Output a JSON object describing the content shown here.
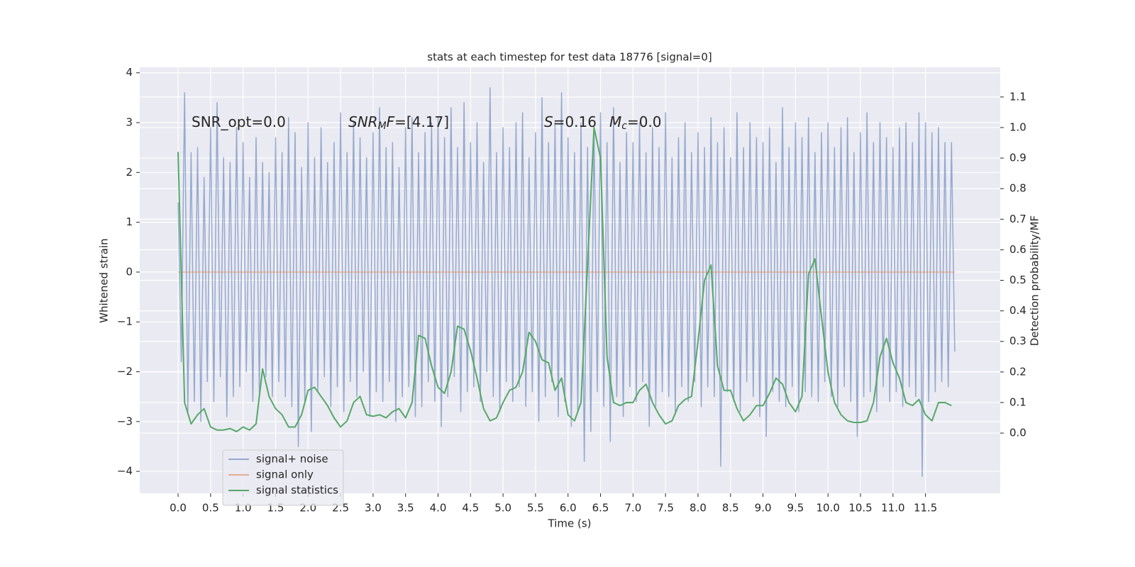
{
  "chart_data": {
    "type": "line",
    "title": "stats at each timestep for test data 18776 [signal=0]",
    "xlabel": "Time (s)",
    "ylabel": "Whitened strain",
    "y2label": "Detection probability/MF",
    "background": "#eaeaf2",
    "grid": true,
    "legend": "lower left",
    "annotations": [
      [
        {
          "text": "SNR_opt=0.0"
        }
      ],
      [
        {
          "text": "SNR",
          "italic": true
        },
        {
          "text": "M",
          "italic": true,
          "sub": true
        },
        {
          "text": "F",
          "italic": true
        },
        {
          "text": "=[4.17]"
        }
      ],
      [
        {
          "text": "S",
          "italic": true
        },
        {
          "text": "=0.16"
        }
      ],
      [
        {
          "text": "M",
          "italic": true
        },
        {
          "text": "c",
          "italic": true,
          "sub": true
        },
        {
          "text": "=0.0"
        }
      ]
    ],
    "xlim": [
      -0.59,
      12.65
    ],
    "xticks": [
      {
        "value": 0,
        "label": "0.0"
      },
      0.5,
      {
        "value": 1,
        "label": "1.0"
      },
      1.5,
      {
        "value": 2,
        "label": "2.0"
      },
      2.5,
      {
        "value": 3,
        "label": "3.0"
      },
      3.5,
      {
        "value": 4,
        "label": "4.0"
      },
      4.5,
      {
        "value": 5,
        "label": "5.0"
      },
      5.5,
      {
        "value": 6,
        "label": "6.0"
      },
      6.5,
      {
        "value": 7,
        "label": "7.0"
      },
      7.5,
      {
        "value": 8,
        "label": "8.0"
      },
      8.5,
      {
        "value": 9,
        "label": "9.0"
      },
      9.5,
      {
        "value": 10,
        "label": "10.0"
      },
      10.5,
      {
        "value": 11,
        "label": "11.0"
      },
      11.5
    ],
    "ylim": [
      -4.44,
      4.11
    ],
    "yticks": [
      {
        "value": -4,
        "label": "−4"
      },
      {
        "value": -3,
        "label": "−3"
      },
      {
        "value": -2,
        "label": "−2"
      },
      {
        "value": -1,
        "label": "−1"
      },
      0,
      1,
      2,
      3,
      4
    ],
    "y2lim": [
      -0.197,
      1.197
    ],
    "y2ticks": [
      {
        "value": 0,
        "label": "0.0"
      },
      0.1,
      0.2,
      0.3,
      0.4,
      0.5,
      0.6,
      0.7,
      0.8,
      0.9,
      {
        "value": 1,
        "label": "1.0"
      },
      1.1
    ],
    "series": [
      {
        "name": "signal+ noise",
        "color": "#4c72b0",
        "opacity": 0.55,
        "x": [
          0,
          0.05,
          0.1,
          0.15,
          0.2,
          0.25,
          0.3,
          0.35,
          0.4,
          0.45,
          0.5,
          0.55,
          0.6,
          0.65,
          0.7,
          0.75,
          0.8,
          0.85,
          0.9,
          0.95,
          1,
          1.05,
          1.1,
          1.15,
          1.2,
          1.25,
          1.3,
          1.35,
          1.4,
          1.45,
          1.5,
          1.55,
          1.6,
          1.65,
          1.7,
          1.75,
          1.8,
          1.85,
          1.9,
          1.95,
          2,
          2.05,
          2.1,
          2.15,
          2.2,
          2.25,
          2.3,
          2.35,
          2.4,
          2.45,
          2.5,
          2.55,
          2.6,
          2.65,
          2.7,
          2.75,
          2.8,
          2.85,
          2.9,
          2.95,
          3,
          3.05,
          3.1,
          3.15,
          3.2,
          3.25,
          3.3,
          3.35,
          3.4,
          3.45,
          3.5,
          3.55,
          3.6,
          3.65,
          3.7,
          3.75,
          3.8,
          3.85,
          3.9,
          3.95,
          4,
          4.05,
          4.1,
          4.15,
          4.2,
          4.25,
          4.3,
          4.35,
          4.4,
          4.45,
          4.5,
          4.55,
          4.6,
          4.65,
          4.7,
          4.75,
          4.8,
          4.85,
          4.9,
          4.95,
          5,
          5.05,
          5.1,
          5.15,
          5.2,
          5.25,
          5.3,
          5.35,
          5.4,
          5.45,
          5.5,
          5.55,
          5.6,
          5.65,
          5.7,
          5.75,
          5.8,
          5.85,
          5.9,
          5.95,
          6,
          6.05,
          6.1,
          6.15,
          6.2,
          6.25,
          6.3,
          6.35,
          6.4,
          6.45,
          6.5,
          6.55,
          6.6,
          6.65,
          6.7,
          6.75,
          6.8,
          6.85,
          6.9,
          6.95,
          7,
          7.05,
          7.1,
          7.15,
          7.2,
          7.25,
          7.3,
          7.35,
          7.4,
          7.45,
          7.5,
          7.55,
          7.6,
          7.65,
          7.7,
          7.75,
          7.8,
          7.85,
          7.9,
          7.95,
          8,
          8.05,
          8.1,
          8.15,
          8.2,
          8.25,
          8.3,
          8.35,
          8.4,
          8.45,
          8.5,
          8.55,
          8.6,
          8.65,
          8.7,
          8.75,
          8.8,
          8.85,
          8.9,
          8.95,
          9,
          9.05,
          9.1,
          9.15,
          9.2,
          9.25,
          9.3,
          9.35,
          9.4,
          9.45,
          9.5,
          9.55,
          9.6,
          9.65,
          9.7,
          9.75,
          9.8,
          9.85,
          9.9,
          9.95,
          10,
          10.05,
          10.1,
          10.15,
          10.2,
          10.25,
          10.3,
          10.35,
          10.4,
          10.45,
          10.5,
          10.55,
          10.6,
          10.65,
          10.7,
          10.75,
          10.8,
          10.85,
          10.9,
          10.95,
          11,
          11.05,
          11.1,
          11.15,
          11.2,
          11.25,
          11.3,
          11.35,
          11.4,
          11.45,
          11.5,
          11.55,
          11.6,
          11.65,
          11.7,
          11.75,
          11.8,
          11.85,
          11.9,
          11.95
        ],
        "values": [
          1.4,
          -1.8,
          3.6,
          -2.8,
          2.4,
          -2.6,
          2.5,
          -3.0,
          1.9,
          -2.2,
          2.9,
          -2.6,
          3.4,
          -2.1,
          2.3,
          -2.9,
          2.2,
          -2.5,
          2.9,
          -2.3,
          2.6,
          -2.0,
          1.9,
          -2.6,
          2.7,
          -2.4,
          2.2,
          -2.1,
          2.0,
          -2.5,
          2.7,
          -2.2,
          2.4,
          -2.5,
          3.1,
          -2.7,
          2.8,
          -3.5,
          2.1,
          -2.6,
          3.0,
          -3.2,
          2.3,
          -2.4,
          2.9,
          -2.1,
          2.2,
          -2.7,
          2.6,
          -2.3,
          3.2,
          -2.8,
          2.4,
          -2.2,
          3.0,
          -2.5,
          2.7,
          -2.0,
          2.3,
          -2.9,
          2.8,
          -2.4,
          3.3,
          -2.6,
          2.5,
          -2.2,
          2.6,
          -3.0,
          2.1,
          -2.5,
          2.9,
          -2.3,
          3.1,
          -2.9,
          2.4,
          -2.7,
          2.8,
          -2.2,
          3.0,
          -2.6,
          3.1,
          -3.1,
          2.7,
          -2.5,
          3.3,
          -2.1,
          2.5,
          -2.8,
          3.4,
          -2.4,
          2.6,
          -2.3,
          3.0,
          -2.6,
          2.2,
          -2.0,
          3.7,
          -2.5,
          2.4,
          -2.8,
          2.9,
          -2.2,
          2.5,
          -2.6,
          3.0,
          -2.3,
          3.2,
          -2.7,
          2.3,
          -2.4,
          2.8,
          -3.0,
          3.5,
          -2.5,
          2.6,
          -2.2,
          3.0,
          -2.9,
          3.6,
          -2.6,
          2.7,
          -3.1,
          2.4,
          -2.8,
          3.0,
          -3.8,
          2.5,
          -3.2,
          2.9,
          -2.4,
          3.2,
          -2.7,
          2.6,
          -3.4,
          3.3,
          -2.5,
          2.2,
          -2.9,
          2.8,
          -2.3,
          2.6,
          -2.6,
          3.0,
          -2.2,
          2.4,
          -3.1,
          2.9,
          -2.7,
          2.5,
          -2.4,
          3.2,
          -2.5,
          2.3,
          -2.8,
          2.7,
          -2.3,
          3.0,
          -2.6,
          2.4,
          -2.2,
          2.8,
          -2.7,
          2.5,
          -2.3,
          3.1,
          -2.5,
          2.6,
          -3.9,
          2.9,
          -2.4,
          2.3,
          -2.6,
          3.2,
          -2.8,
          2.5,
          -2.2,
          3.0,
          -2.5,
          2.7,
          -2.9,
          2.6,
          -3.3,
          2.9,
          -2.4,
          2.2,
          -2.6,
          3.3,
          -2.7,
          2.5,
          -2.3,
          3.0,
          -2.8,
          2.7,
          -2.4,
          3.1,
          -2.5,
          2.4,
          -2.6,
          2.8,
          -2.2,
          3.0,
          -2.5,
          2.5,
          -2.7,
          2.9,
          -2.3,
          3.1,
          -2.6,
          2.4,
          -3.3,
          2.8,
          -2.5,
          3.2,
          -2.4,
          2.6,
          -2.8,
          3.0,
          -2.3,
          2.7,
          -2.6,
          2.5,
          -2.4,
          2.9,
          -2.7,
          3.0,
          -2.3,
          2.6,
          -2.5,
          3.2,
          -4.1,
          3.0,
          -2.6,
          2.8,
          -2.4,
          2.9,
          -2.2,
          2.6,
          -2.3,
          2.6,
          -1.6
        ]
      },
      {
        "name": "signal only",
        "color": "#dd8452",
        "opacity": 0.6,
        "x": [
          0,
          11.95
        ],
        "values": [
          0,
          0
        ]
      },
      {
        "name": "signal statistics",
        "color": "#55a868",
        "opacity": 1,
        "axis": "y2",
        "x": [
          0,
          0.1,
          0.2,
          0.3,
          0.4,
          0.5,
          0.6,
          0.7,
          0.8,
          0.9,
          1,
          1.1,
          1.2,
          1.3,
          1.4,
          1.5,
          1.6,
          1.7,
          1.8,
          1.9,
          2,
          2.1,
          2.2,
          2.3,
          2.4,
          2.5,
          2.6,
          2.7,
          2.8,
          2.9,
          3,
          3.1,
          3.2,
          3.3,
          3.4,
          3.5,
          3.6,
          3.7,
          3.8,
          3.9,
          4,
          4.1,
          4.2,
          4.3,
          4.4,
          4.5,
          4.6,
          4.7,
          4.8,
          4.9,
          5,
          5.1,
          5.2,
          5.3,
          5.4,
          5.5,
          5.6,
          5.7,
          5.8,
          5.9,
          6,
          6.1,
          6.2,
          6.3,
          6.4,
          6.5,
          6.6,
          6.7,
          6.8,
          6.9,
          7,
          7.1,
          7.2,
          7.3,
          7.4,
          7.5,
          7.6,
          7.7,
          7.8,
          7.9,
          8,
          8.1,
          8.2,
          8.3,
          8.4,
          8.5,
          8.6,
          8.7,
          8.8,
          8.9,
          9,
          9.1,
          9.2,
          9.3,
          9.4,
          9.5,
          9.6,
          9.7,
          9.8,
          9.9,
          10,
          10.1,
          10.2,
          10.3,
          10.4,
          10.5,
          10.6,
          10.7,
          10.8,
          10.9,
          11,
          11.1,
          11.2,
          11.3,
          11.4,
          11.5,
          11.6,
          11.7,
          11.8,
          11.9
        ],
        "values": [
          0.92,
          0.1,
          0.03,
          0.06,
          0.08,
          0.02,
          0.01,
          0.01,
          0.015,
          0.005,
          0.02,
          0.01,
          0.03,
          0.21,
          0.12,
          0.08,
          0.06,
          0.02,
          0.02,
          0.06,
          0.14,
          0.15,
          0.12,
          0.09,
          0.05,
          0.02,
          0.04,
          0.1,
          0.12,
          0.06,
          0.055,
          0.06,
          0.05,
          0.07,
          0.08,
          0.05,
          0.1,
          0.32,
          0.31,
          0.22,
          0.15,
          0.13,
          0.2,
          0.35,
          0.34,
          0.27,
          0.18,
          0.08,
          0.04,
          0.05,
          0.1,
          0.14,
          0.15,
          0.2,
          0.33,
          0.3,
          0.24,
          0.23,
          0.14,
          0.18,
          0.06,
          0.04,
          0.1,
          0.55,
          1.0,
          0.9,
          0.25,
          0.1,
          0.09,
          0.1,
          0.1,
          0.14,
          0.16,
          0.1,
          0.06,
          0.03,
          0.04,
          0.09,
          0.11,
          0.12,
          0.3,
          0.5,
          0.55,
          0.22,
          0.14,
          0.14,
          0.08,
          0.04,
          0.06,
          0.09,
          0.09,
          0.13,
          0.18,
          0.16,
          0.1,
          0.07,
          0.12,
          0.52,
          0.57,
          0.38,
          0.2,
          0.1,
          0.06,
          0.04,
          0.035,
          0.035,
          0.04,
          0.1,
          0.25,
          0.31,
          0.23,
          0.18,
          0.1,
          0.09,
          0.11,
          0.06,
          0.04,
          0.1,
          0.1,
          0.09
        ]
      }
    ]
  }
}
